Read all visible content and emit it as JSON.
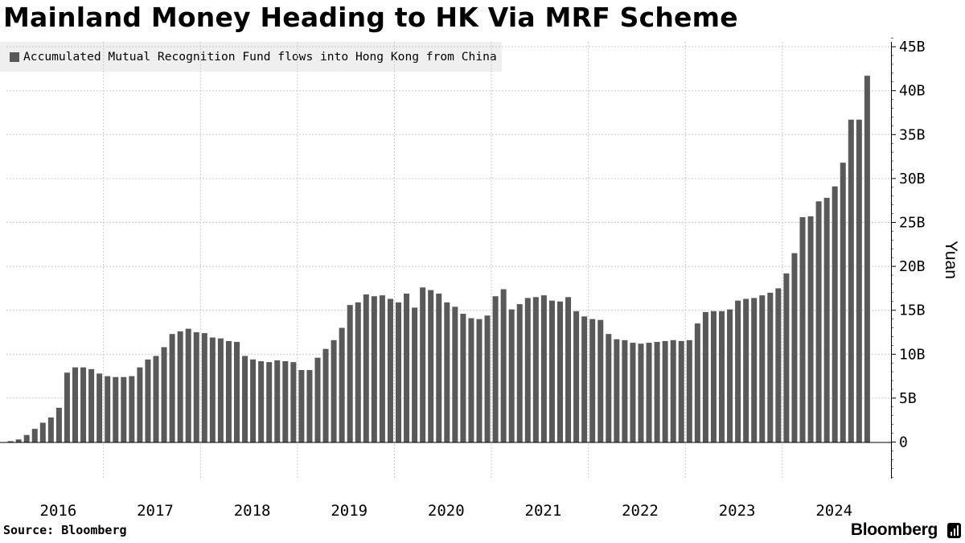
{
  "title": "Mainland Money Heading to HK Via MRF Scheme",
  "source": "Source: Bloomberg",
  "brand": "Bloomberg",
  "brand_icon": "bloomberg-terminal-icon",
  "colors": {
    "bar": "#595959",
    "legend_bg": "#efefef",
    "grid": "#c8c8c8"
  },
  "chart_data": {
    "type": "bar",
    "title": "Mainland Money Heading to HK Via MRF Scheme",
    "ylabel": "Yuan",
    "xlabel": "",
    "legend": "Accumulated Mutual Recognition Fund flows into Hong Kong from China",
    "legend_position": "top-left",
    "ylim": [
      -4,
      46
    ],
    "yticks": [
      0,
      5,
      10,
      15,
      20,
      25,
      30,
      35,
      40,
      45
    ],
    "ytick_labels": [
      "0",
      "5B",
      "10B",
      "15B",
      "20B",
      "25B",
      "30B",
      "35B",
      "40B",
      "45B"
    ],
    "year_labels": [
      "2016",
      "2017",
      "2018",
      "2019",
      "2020",
      "2021",
      "2022",
      "2023",
      "2024"
    ],
    "year_start_index": [
      0,
      12,
      24,
      36,
      48,
      60,
      72,
      84,
      96
    ],
    "grid": true,
    "series": [
      {
        "name": "Accumulated Mutual Recognition Fund flows into Hong Kong from China",
        "unit": "billion yuan",
        "values": [
          0.1,
          0.3,
          0.8,
          1.5,
          2.2,
          2.8,
          3.9,
          7.9,
          8.5,
          8.5,
          8.3,
          7.8,
          7.5,
          7.4,
          7.4,
          7.5,
          8.5,
          9.4,
          9.8,
          10.8,
          12.3,
          12.6,
          12.9,
          12.5,
          12.4,
          11.9,
          11.8,
          11.5,
          11.4,
          9.8,
          9.4,
          9.2,
          9.1,
          9.3,
          9.2,
          9.1,
          8.2,
          8.2,
          9.6,
          10.6,
          11.6,
          13.0,
          15.6,
          15.9,
          16.8,
          16.6,
          16.7,
          16.3,
          15.9,
          16.9,
          15.3,
          17.6,
          17.3,
          16.9,
          15.9,
          15.4,
          14.6,
          14.1,
          14.0,
          14.4,
          16.6,
          17.4,
          15.1,
          15.7,
          16.4,
          16.5,
          16.7,
          16.1,
          16.0,
          16.5,
          14.9,
          14.3,
          14.0,
          13.9,
          12.3,
          11.7,
          11.6,
          11.3,
          11.2,
          11.3,
          11.4,
          11.5,
          11.6,
          11.5,
          11.6,
          13.5,
          14.8,
          14.9,
          14.9,
          15.1,
          16.1,
          16.3,
          16.4,
          16.7,
          17.0,
          17.5,
          19.2,
          21.5,
          25.6,
          25.7,
          27.4,
          27.8,
          29.1,
          31.8,
          36.7,
          36.7,
          41.7
        ]
      }
    ]
  }
}
